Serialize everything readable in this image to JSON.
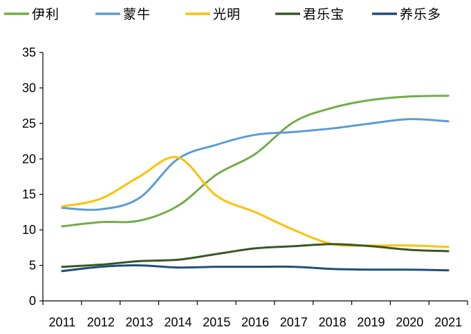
{
  "chart_data": {
    "type": "line",
    "title": "",
    "xlabel": "",
    "ylabel": "",
    "categories": [
      "2011",
      "2012",
      "2013",
      "2014",
      "2015",
      "2016",
      "2017",
      "2018",
      "2019",
      "2020",
      "2021"
    ],
    "ylim": [
      0,
      35
    ],
    "yticks": [
      0,
      5,
      10,
      15,
      20,
      25,
      30,
      35
    ],
    "grid": false,
    "legend_position": "top",
    "series": [
      {
        "name": "伊利",
        "color": "#70AD47",
        "values": [
          10.5,
          11.1,
          11.3,
          13.4,
          17.8,
          20.7,
          25.2,
          27.2,
          28.3,
          28.8,
          28.9
        ]
      },
      {
        "name": "蒙牛",
        "color": "#5B9BD5",
        "values": [
          13.1,
          12.9,
          14.5,
          20.0,
          22.0,
          23.4,
          23.8,
          24.3,
          25.0,
          25.6,
          25.3
        ]
      },
      {
        "name": "光明",
        "color": "#FFC000",
        "values": [
          13.3,
          14.4,
          17.5,
          20.2,
          14.8,
          12.5,
          10.0,
          8.0,
          7.8,
          7.8,
          7.6
        ]
      },
      {
        "name": "君乐宝",
        "color": "#385723",
        "values": [
          4.8,
          5.1,
          5.6,
          5.8,
          6.6,
          7.4,
          7.7,
          8.0,
          7.7,
          7.2,
          7.0
        ]
      },
      {
        "name": "养乐多",
        "color": "#1F4E79",
        "values": [
          4.2,
          4.8,
          5.0,
          4.7,
          4.8,
          4.8,
          4.8,
          4.5,
          4.4,
          4.4,
          4.3
        ]
      }
    ]
  }
}
